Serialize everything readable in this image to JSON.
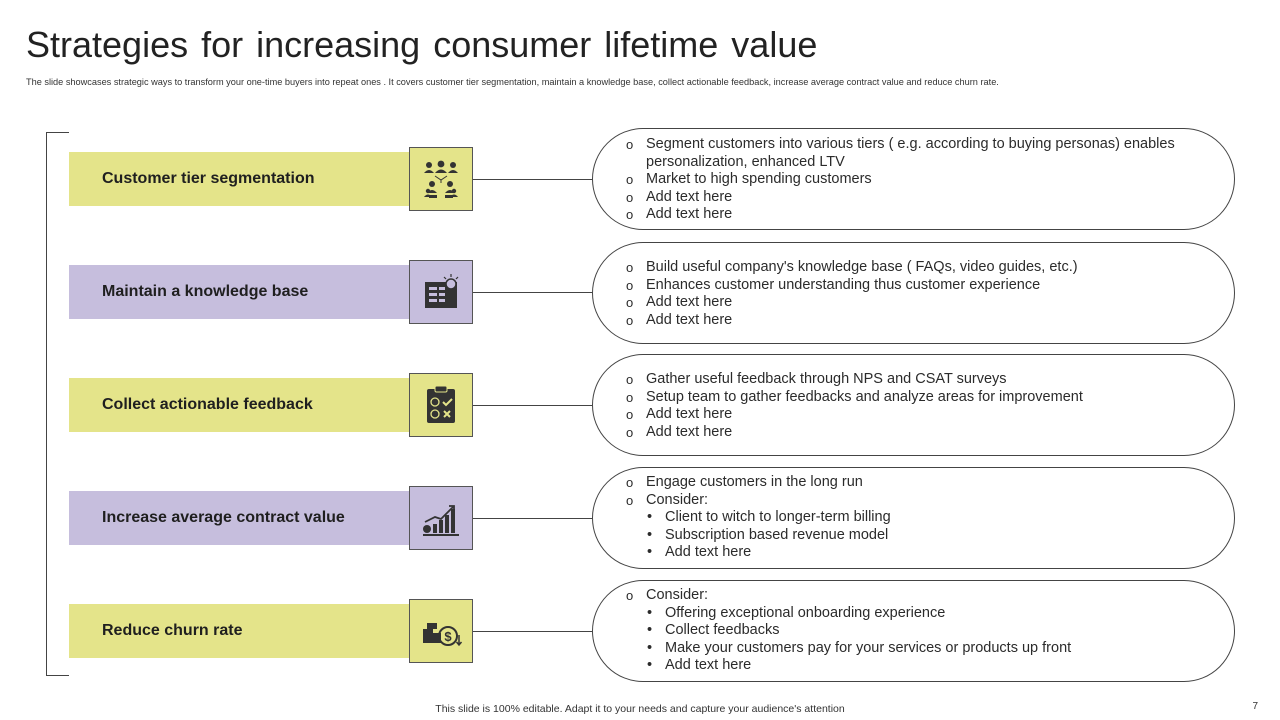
{
  "title": "Strategies for increasing consumer lifetime value",
  "subtitle": "The slide showcases strategic ways to transform your one-time buyers into repeat ones . It covers customer tier segmentation, maintain a knowledge base, collect actionable feedback, increase average contract value and reduce churn rate.",
  "colors": {
    "yellow": "#e4e48a",
    "purple": "#c6bedd",
    "icon_dark": "#333333"
  },
  "rows": [
    {
      "label": "Customer tier segmentation",
      "icon": "people-group-icon",
      "items": [
        "Segment customers into various tiers ( e.g. according to buying personas) enables personalization, enhanced LTV",
        "Market to high spending customers",
        "Add text here",
        "Add text here"
      ]
    },
    {
      "label": "Maintain a knowledge base",
      "icon": "knowledge-base-icon",
      "items": [
        "Build useful company's knowledge base ( FAQs, video guides, etc.)",
        "Enhances customer understanding thus customer experience",
        "Add text here",
        "Add text here"
      ]
    },
    {
      "label": "Collect actionable feedback",
      "icon": "feedback-clipboard-icon",
      "items": [
        "Gather useful feedback through NPS and CSAT surveys",
        "Setup team to gather feedbacks and analyze areas for improvement",
        "Add text here",
        "Add text here"
      ]
    },
    {
      "label": "Increase average contract value",
      "icon": "growth-chart-icon",
      "items": [
        "Engage customers in the long run",
        "Consider:"
      ],
      "subitems": [
        "Client to witch to longer-term billing",
        "Subscription based revenue model",
        "Add text here"
      ]
    },
    {
      "label": "Reduce churn rate",
      "icon": "dollar-coins-icon",
      "items": [
        "Consider:"
      ],
      "subitems": [
        "Offering exceptional onboarding experience",
        "Collect feedbacks",
        "Make your customers pay for your services or products up front",
        "Add text here"
      ]
    }
  ],
  "footer": "This slide is 100% editable. Adapt it to your needs and capture your audience's attention",
  "page_number": "7"
}
